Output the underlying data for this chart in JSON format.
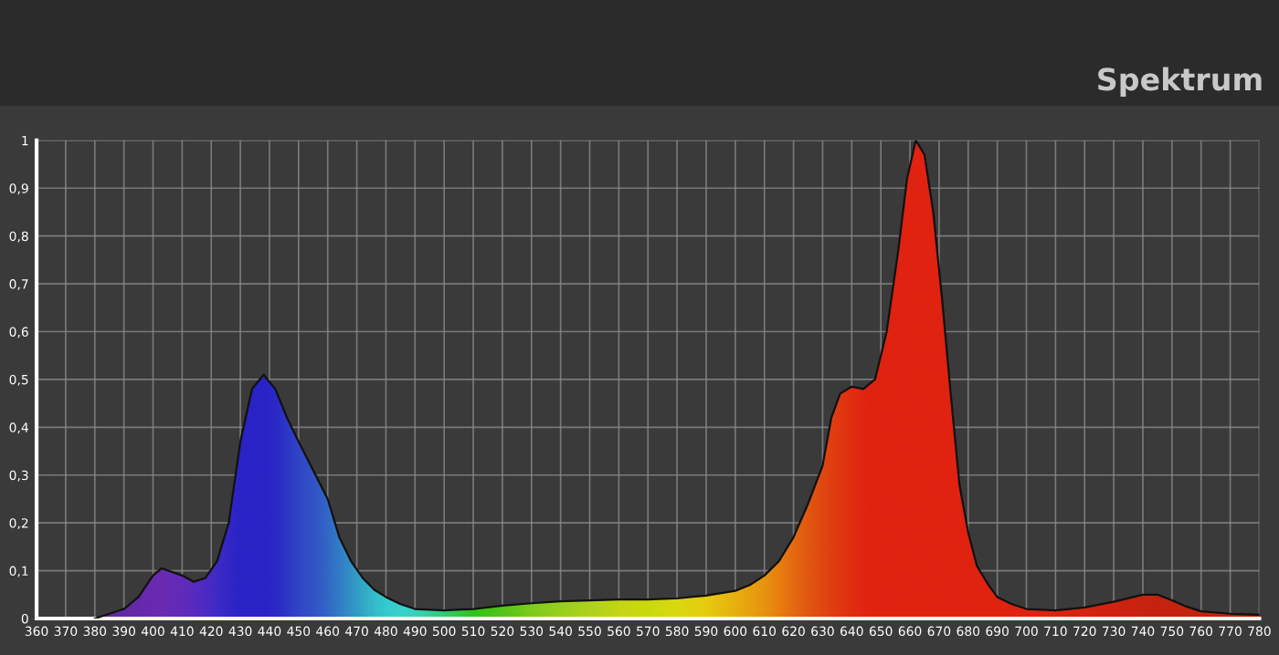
{
  "chart_data": {
    "type": "area",
    "title": "Spektrum",
    "xlim": [
      360,
      780
    ],
    "xticks": [
      360,
      370,
      380,
      390,
      400,
      410,
      420,
      430,
      440,
      450,
      460,
      470,
      480,
      490,
      500,
      510,
      520,
      530,
      540,
      550,
      560,
      570,
      580,
      590,
      600,
      610,
      620,
      630,
      640,
      650,
      660,
      670,
      680,
      690,
      700,
      710,
      720,
      730,
      740,
      750,
      760,
      770,
      780
    ],
    "ylim": [
      0,
      1
    ],
    "yticks": [
      0,
      {
        "value": 0.1,
        "label": "0,1"
      },
      {
        "value": 0.2,
        "label": "0,2"
      },
      {
        "value": 0.3,
        "label": "0,3"
      },
      {
        "value": 0.4,
        "label": "0,4"
      },
      {
        "value": 0.5,
        "label": "0,5"
      },
      {
        "value": 0.6,
        "label": "0,6"
      },
      {
        "value": 0.7,
        "label": "0,7"
      },
      {
        "value": 0.8,
        "label": "0,8"
      },
      {
        "value": 0.9,
        "label": "0,9"
      },
      1
    ],
    "grid": true,
    "legend": false,
    "series": [
      {
        "x": [
          380,
          390,
          395,
          400,
          403,
          410,
          414,
          418,
          422,
          426,
          430,
          434,
          438,
          442,
          446,
          450,
          455,
          460,
          464,
          468,
          472,
          476,
          480,
          485,
          490,
          500,
          510,
          520,
          530,
          540,
          550,
          560,
          570,
          580,
          590,
          600,
          605,
          610,
          615,
          620,
          625,
          630,
          633,
          636,
          640,
          644,
          648,
          652,
          656,
          659,
          662,
          665,
          668,
          671,
          674,
          677,
          680,
          683,
          687,
          690,
          695,
          700,
          710,
          720,
          730,
          740,
          745,
          750,
          755,
          760,
          770,
          780
        ],
        "values": [
          0,
          0.02,
          0.045,
          0.09,
          0.105,
          0.09,
          0.077,
          0.085,
          0.12,
          0.2,
          0.37,
          0.48,
          0.51,
          0.48,
          0.42,
          0.37,
          0.31,
          0.25,
          0.17,
          0.12,
          0.085,
          0.06,
          0.045,
          0.03,
          0.02,
          0.017,
          0.02,
          0.027,
          0.032,
          0.036,
          0.038,
          0.04,
          0.04,
          0.042,
          0.048,
          0.058,
          0.07,
          0.09,
          0.12,
          0.17,
          0.24,
          0.32,
          0.42,
          0.47,
          0.485,
          0.48,
          0.5,
          0.6,
          0.77,
          0.92,
          1.0,
          0.97,
          0.85,
          0.67,
          0.47,
          0.28,
          0.18,
          0.11,
          0.07,
          0.045,
          0.03,
          0.02,
          0.017,
          0.023,
          0.035,
          0.05,
          0.05,
          0.038,
          0.025,
          0.015,
          0.01,
          0.008
        ],
        "colors": [
          "#4a1aa8",
          "#5018b8",
          "#5418c0",
          "#5818c8",
          "#5a18c8",
          "#5018d0",
          "#4418d8",
          "#3818dc",
          "#2818e0",
          "#1a14e0",
          "#1010e0",
          "#1010e0",
          "#1010e0",
          "#1018e0",
          "#1428e0",
          "#1838e0",
          "#1a48e0",
          "#1a60e0",
          "#1a78e0",
          "#1a90e0",
          "#1aa8e0",
          "#1cc0e4",
          "#1ed0e8",
          "#20d8e8",
          "#20d8d8",
          "#18d080",
          "#18c818",
          "#40c818",
          "#70d020",
          "#90d420",
          "#a8d820",
          "#c0dc18",
          "#c8e010",
          "#d8e010",
          "#e8d010",
          "#e8b010",
          "#e8a010",
          "#e89010",
          "#e87810",
          "#e46010",
          "#e04c10",
          "#e03a10",
          "#e03010",
          "#e02810",
          "#e01c10",
          "#e01410",
          "#e01010",
          "#e01010",
          "#e01010",
          "#e01010",
          "#e01010",
          "#e01010",
          "#e01010",
          "#e01010",
          "#e01010",
          "#e01010",
          "#e01010",
          "#e01010",
          "#e01010",
          "#e01010",
          "#e01010",
          "#e01010",
          "#dc1010",
          "#d41010",
          "#cc1010",
          "#c41010",
          "#c01010",
          "#c01010",
          "#c01010",
          "#c01010",
          "#c01010",
          "#c01010"
        ]
      }
    ]
  }
}
